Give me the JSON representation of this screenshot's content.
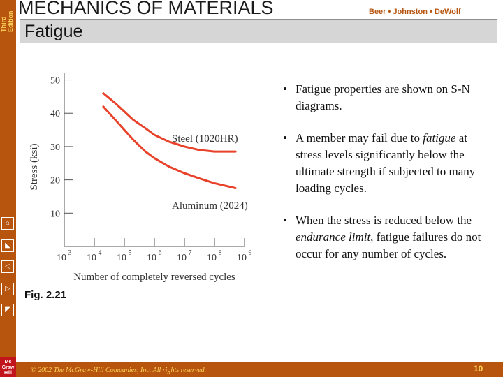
{
  "header": {
    "edition_line1": "Third",
    "edition_line2": "Edition",
    "title": "MECHANICS OF MATERIALS",
    "authors": "Beer • Johnston • DeWolf"
  },
  "slide": {
    "title": "Fatigue",
    "bullets": [
      {
        "parts": [
          {
            "text": "Fatigue properties are shown on S-N diagrams.",
            "italic": false
          }
        ]
      },
      {
        "parts": [
          {
            "text": "A member may fail due to ",
            "italic": false
          },
          {
            "text": "fatigue",
            "italic": true
          },
          {
            "text": " at stress levels significantly below the ultimate strength if subjected to many loading cycles.",
            "italic": false
          }
        ]
      },
      {
        "parts": [
          {
            "text": "When the stress is reduced below the ",
            "italic": false
          },
          {
            "text": "endurance limit",
            "italic": true
          },
          {
            "text": ", fatigue failures do not occur for any number of cycles.",
            "italic": false
          }
        ]
      }
    ],
    "figure_label": "Fig. 2.21"
  },
  "footer": {
    "copyright": "© 2002 The McGraw-Hill Companies, Inc. All rights reserved.",
    "page_number": "10",
    "logo": "Mc Graw Hill"
  },
  "colors": {
    "sidebar": "#b7550f",
    "curve": "#e8422a",
    "accent_text": "#ffd35a"
  },
  "nav_icons": [
    "home-icon",
    "first-icon",
    "previous-icon",
    "next-icon",
    "last-icon"
  ],
  "chart_data": {
    "type": "line",
    "xlabel": "Number of completely reversed cycles",
    "ylabel": "Stress (ksi)",
    "x_scale": "log",
    "xlim": [
      1000,
      1000000000
    ],
    "ylim": [
      0,
      52
    ],
    "x_ticks": [
      1000,
      10000,
      100000,
      1000000,
      10000000,
      100000000,
      1000000000
    ],
    "x_tick_labels": [
      [
        "10",
        "3"
      ],
      [
        "10",
        "4"
      ],
      [
        "10",
        "5"
      ],
      [
        "10",
        "6"
      ],
      [
        "10",
        "7"
      ],
      [
        "10",
        "8"
      ],
      [
        "10",
        "9"
      ]
    ],
    "y_ticks": [
      10,
      20,
      30,
      40,
      50
    ],
    "series": [
      {
        "name": "Steel (1020HR)",
        "x": [
          20000,
          50000,
          100000,
          200000,
          500000,
          1000000,
          3000000,
          10000000,
          30000000,
          100000000,
          500000000
        ],
        "y": [
          46,
          43,
          40.5,
          38,
          35.5,
          33.5,
          31.5,
          30,
          29,
          28.5,
          28.5
        ]
      },
      {
        "name": "Aluminum (2024)",
        "x": [
          20000,
          50000,
          100000,
          200000,
          500000,
          1000000,
          3000000,
          10000000,
          30000000,
          100000000,
          500000000
        ],
        "y": [
          42,
          38,
          35,
          32,
          28.5,
          26.5,
          24,
          22,
          20.5,
          19,
          17.5
        ]
      }
    ]
  }
}
